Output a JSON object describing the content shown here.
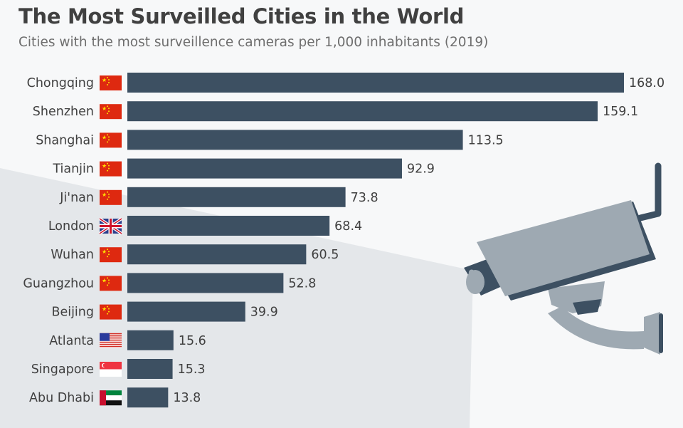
{
  "header": {
    "title": "The Most Surveilled Cities in the World",
    "subtitle": "Cities with the most surveillence cameras per 1,000 inhabitants (2019)"
  },
  "colors": {
    "bar": "#3d5062",
    "camera_light": "#9ea9b2",
    "camera_dark": "#3d5062",
    "beam": "#d9dde0"
  },
  "chart_data": {
    "type": "bar",
    "orientation": "horizontal",
    "title": "The Most Surveilled Cities in the World",
    "subtitle": "Cities with the most surveillence cameras per 1,000 inhabitants (2019)",
    "xlabel": "",
    "ylabel": "",
    "xlim": [
      0,
      168
    ],
    "grid": false,
    "categories": [
      "Chongqing",
      "Shenzhen",
      "Shanghai",
      "Tianjin",
      "Ji'nan",
      "London",
      "Wuhan",
      "Guangzhou",
      "Beijing",
      "Atlanta",
      "Singapore",
      "Abu Dhabi"
    ],
    "flags": [
      "china",
      "china",
      "china",
      "china",
      "china",
      "uk",
      "china",
      "china",
      "china",
      "usa",
      "singapore",
      "uae"
    ],
    "values": [
      168.0,
      159.1,
      113.5,
      92.9,
      73.8,
      68.4,
      60.5,
      52.8,
      39.9,
      15.6,
      15.3,
      13.8
    ],
    "value_labels": [
      "168.0",
      "159.1",
      "113.5",
      "92.9",
      "73.8",
      "68.4",
      "60.5",
      "52.8",
      "39.9",
      "15.6",
      "15.3",
      "13.8"
    ]
  },
  "decoration": {
    "illustration": "security-camera"
  }
}
